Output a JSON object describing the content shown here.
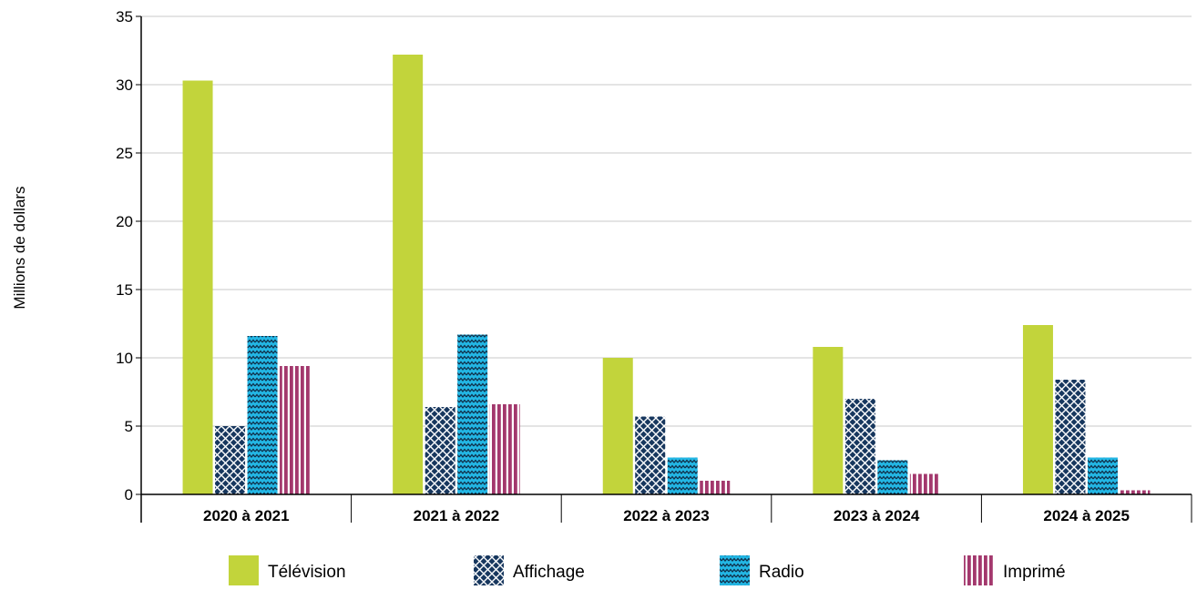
{
  "chart_data": {
    "type": "bar",
    "title": "",
    "xlabel": "",
    "ylabel": "Millions de dollars",
    "ylim": [
      0,
      35
    ],
    "yticks": [
      0,
      5,
      10,
      15,
      20,
      25,
      30,
      35
    ],
    "grid": true,
    "legend_position": "bottom",
    "categories": [
      "2020 à 2021",
      "2021 à 2022",
      "2022 à 2023",
      "2023 à 2024",
      "2024 à 2025"
    ],
    "series": [
      {
        "name": "Télévision",
        "values": [
          30.3,
          32.2,
          10.0,
          10.8,
          12.4
        ],
        "color": "#c2d43b",
        "pattern": "solid"
      },
      {
        "name": "Affichage",
        "values": [
          5.0,
          6.4,
          5.7,
          7.0,
          8.4
        ],
        "color": "#17375e",
        "pattern": "crosshatch"
      },
      {
        "name": "Radio",
        "values": [
          11.6,
          11.7,
          2.7,
          2.5,
          2.7
        ],
        "color": "#23b7e5",
        "pattern": "zigzag"
      },
      {
        "name": "Imprimé",
        "values": [
          9.4,
          6.6,
          1.0,
          1.5,
          0.3
        ],
        "color": "#a3386d",
        "pattern": "vertical-stripes"
      }
    ]
  }
}
